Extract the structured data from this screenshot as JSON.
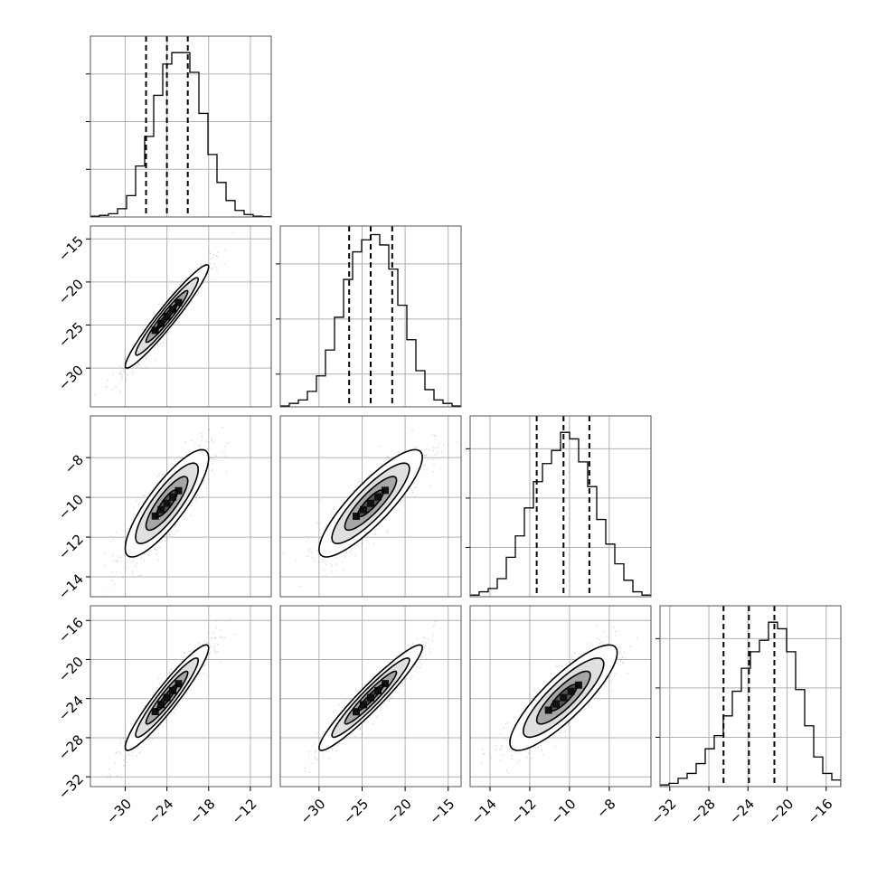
{
  "colors": {
    "line": "#000000",
    "grid": "#b0b0b0",
    "scatter": "#7f7f7f",
    "background": "#ffffff"
  },
  "chart_data": {
    "type": "corner",
    "title": "",
    "dimensions": [
      {
        "xlim": [
          -35,
          -9
        ],
        "ylim": [
          -34.5,
          -13.5
        ],
        "xticks": [
          "−30",
          "−24",
          "−18",
          "−12"
        ],
        "yticks": [
          "−15",
          "−20",
          "−25",
          "−30"
        ]
      },
      {
        "xlim": [
          -34.5,
          -13.5
        ],
        "ylim": [
          -15,
          -5.9
        ],
        "xticks": [
          "−30",
          "−25",
          "−20",
          "−15"
        ],
        "yticks": [
          "−8",
          "−10",
          "−12",
          "−14"
        ]
      },
      {
        "xlim": [
          -15,
          -5.9
        ],
        "ylim": [
          -33,
          -14.5
        ],
        "xticks": [
          "−14",
          "−12",
          "−10",
          "−8"
        ],
        "yticks": [
          "−16",
          "−20",
          "−24",
          "−28",
          "−32"
        ]
      },
      {
        "xlim": [
          -33,
          -14.5
        ],
        "xticks": [
          "−32",
          "−28",
          "−24",
          "−20",
          "−16"
        ]
      }
    ],
    "histograms": [
      {
        "edges_start": -35,
        "bin_width": 1.3,
        "counts": [
          0.5,
          1,
          2,
          5,
          13,
          31,
          49,
          74,
          93,
          100,
          100,
          88,
          63,
          38,
          21,
          10,
          4,
          1.5,
          0.5,
          0.2
        ],
        "quantiles": [
          -27.0,
          -24.0,
          -21.0
        ],
        "ylim": [
          0,
          110
        ],
        "gridlines_y": [
          29,
          58,
          87
        ],
        "gridlines_x": [
          -30,
          -24,
          -18,
          -12
        ]
      },
      {
        "edges_start": -34.5,
        "bin_width": 1.05,
        "counts": [
          0.5,
          2,
          4,
          9,
          18,
          33,
          52,
          74,
          90,
          97,
          100,
          94,
          80,
          59,
          39,
          21,
          10,
          4,
          2,
          0.5
        ],
        "quantiles": [
          -26.5,
          -24.0,
          -21.5
        ],
        "ylim": [
          0,
          105
        ],
        "gridlines_y": [
          19,
          51,
          83
        ],
        "gridlines_x": [
          -30,
          -25,
          -20,
          -15
        ]
      },
      {
        "edges_start": -15,
        "bin_width": 0.455,
        "counts": [
          1,
          3,
          5,
          11,
          24,
          37,
          54,
          70,
          81,
          89,
          100,
          96,
          82,
          67,
          47,
          32,
          20,
          10,
          3,
          1
        ],
        "quantiles": [
          -11.65,
          -10.3,
          -9.0
        ],
        "ylim": [
          0,
          110
        ],
        "gridlines_y": [
          30,
          60,
          90
        ],
        "gridlines_x": [
          -14,
          -12,
          -10,
          -8
        ]
      },
      {
        "edges_start": -33,
        "bin_width": 0.925,
        "counts": [
          1,
          2,
          5,
          8,
          14,
          23,
          31,
          43,
          58,
          72,
          82,
          89,
          100,
          96,
          82,
          59,
          37,
          18,
          8,
          4
        ],
        "quantiles": [
          -26.5,
          -23.9,
          -21.3
        ],
        "ylim": [
          0,
          110
        ],
        "gridlines_y": [
          30,
          60,
          90
        ],
        "gridlines_x": [
          -32,
          -28,
          -24,
          -20,
          -16
        ]
      }
    ],
    "correlations": [
      {
        "row": 1,
        "col": 0,
        "mean": [
          -24,
          -24
        ],
        "sd": [
          3.0,
          3.0
        ],
        "rho": 0.96
      },
      {
        "row": 2,
        "col": 0,
        "mean": [
          -24,
          -10.3
        ],
        "sd": [
          3.0,
          1.35
        ],
        "rho": 0.84
      },
      {
        "row": 2,
        "col": 1,
        "mean": [
          -24,
          -10.3
        ],
        "sd": [
          3.0,
          1.35
        ],
        "rho": 0.86
      },
      {
        "row": 3,
        "col": 0,
        "mean": [
          -24,
          -23.9
        ],
        "sd": [
          3.0,
          2.7
        ],
        "rho": 0.94
      },
      {
        "row": 3,
        "col": 1,
        "mean": [
          -24,
          -23.9
        ],
        "sd": [
          3.0,
          2.7
        ],
        "rho": 0.95
      },
      {
        "row": 3,
        "col": 2,
        "mean": [
          -10.3,
          -23.9
        ],
        "sd": [
          1.35,
          2.7
        ],
        "rho": 0.85
      }
    ],
    "contour_levels_sigma": [
      0.5,
      1.0,
      1.5,
      2.0
    ],
    "grid": true,
    "legend": "none"
  }
}
